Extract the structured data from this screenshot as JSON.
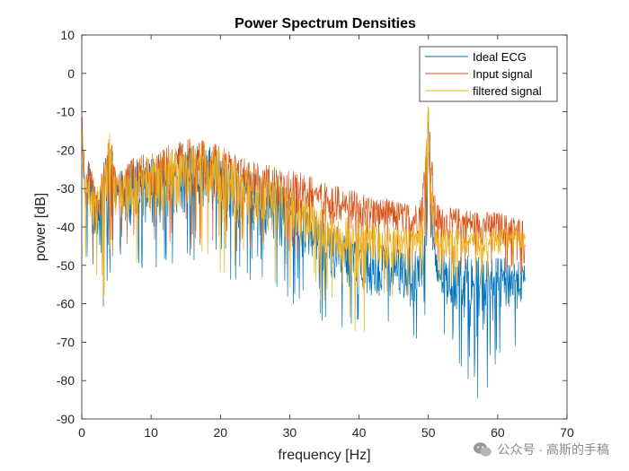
{
  "chart_data": {
    "type": "line",
    "title": "Power Spectrum Densities",
    "xlabel": "frequency [Hz]",
    "ylabel": "power [dB]",
    "xlim": [
      0,
      70
    ],
    "ylim": [
      -90,
      10
    ],
    "xticks": [
      0,
      10,
      20,
      30,
      40,
      50,
      60,
      70
    ],
    "yticks": [
      10,
      0,
      -10,
      -20,
      -30,
      -40,
      -50,
      -60,
      -70,
      -80,
      -90
    ],
    "legend_position": "top-right",
    "grid": false,
    "series": [
      {
        "name": "Ideal ECG",
        "color": "#0072BD",
        "x": [
          0,
          0.5,
          1,
          2,
          3,
          4,
          5,
          6,
          8,
          10,
          12,
          15,
          18,
          20,
          22,
          25,
          28,
          30,
          32,
          35,
          38,
          40,
          42,
          45,
          48,
          49,
          50,
          51,
          52,
          55,
          57.5,
          60,
          62,
          64
        ],
        "max": [
          -10,
          -28,
          -22,
          -30,
          -25,
          -15,
          -27,
          -25,
          -22,
          -22,
          -20,
          -18,
          -18,
          -20,
          -23,
          -26,
          -28,
          -30,
          -34,
          -38,
          -41,
          -44,
          -44,
          -45,
          -46,
          -44,
          -12,
          -46,
          -47,
          -47,
          -48,
          -48,
          -48,
          -50
        ],
        "min": [
          -40,
          -48,
          -50,
          -60,
          -72,
          -55,
          -50,
          -56,
          -52,
          -55,
          -55,
          -52,
          -50,
          -55,
          -55,
          -55,
          -58,
          -60,
          -60,
          -65,
          -68,
          -72,
          -70,
          -70,
          -74,
          -70,
          -68,
          -72,
          -72,
          -77,
          -88,
          -75,
          -75,
          -68
        ]
      },
      {
        "name": "Input signal",
        "color": "#D95319",
        "x": [
          0,
          0.5,
          1,
          2,
          3,
          4,
          5,
          6,
          8,
          10,
          12,
          15,
          18,
          20,
          22,
          25,
          28,
          30,
          32,
          35,
          38,
          40,
          42,
          45,
          48,
          49,
          50,
          51,
          52,
          55,
          57.5,
          60,
          62,
          64
        ],
        "max": [
          -9,
          -27,
          -21,
          -29,
          -24,
          -14,
          -26,
          -24,
          -21,
          -21,
          -19,
          -17,
          -17,
          -19,
          -21,
          -23,
          -24,
          -25,
          -26,
          -28,
          -30,
          -31,
          -32,
          -33,
          -34,
          -32,
          -9,
          -33,
          -35,
          -35,
          -36,
          -36,
          -37,
          -38
        ],
        "min": [
          -38,
          -46,
          -45,
          -52,
          -55,
          -50,
          -46,
          -48,
          -46,
          -47,
          -48,
          -46,
          -45,
          -46,
          -47,
          -47,
          -48,
          -48,
          -48,
          -49,
          -50,
          -50,
          -50,
          -50,
          -51,
          -50,
          -42,
          -51,
          -52,
          -52,
          -52,
          -53,
          -53,
          -52
        ]
      },
      {
        "name": "filtered signal",
        "color": "#EDB120",
        "x": [
          0,
          0.5,
          1,
          2,
          3,
          4,
          5,
          6,
          8,
          10,
          12,
          15,
          18,
          20,
          22,
          25,
          28,
          30,
          32,
          35,
          38,
          40,
          42,
          45,
          48,
          49,
          50,
          51,
          52,
          55,
          57.5,
          60,
          62,
          64
        ],
        "max": [
          -10,
          -28,
          -22,
          -30,
          -25,
          -15,
          -27,
          -25,
          -22,
          -22,
          -20,
          -18,
          -18,
          -20,
          -22,
          -25,
          -27,
          -29,
          -32,
          -35,
          -37,
          -38,
          -39,
          -40,
          -40,
          -38,
          -8,
          -39,
          -40,
          -40,
          -40,
          -40,
          -40,
          -40
        ],
        "min": [
          -40,
          -48,
          -49,
          -56,
          -60,
          -52,
          -48,
          -52,
          -50,
          -52,
          -54,
          -50,
          -48,
          -52,
          -52,
          -52,
          -55,
          -57,
          -58,
          -60,
          -62,
          -78,
          -60,
          -60,
          -58,
          -56,
          -52,
          -58,
          -56,
          -55,
          -56,
          -55,
          -55,
          -54
        ]
      }
    ]
  },
  "watermark": {
    "icon": "wechat-icon",
    "text": "公众号 · 高斯的手稿"
  }
}
